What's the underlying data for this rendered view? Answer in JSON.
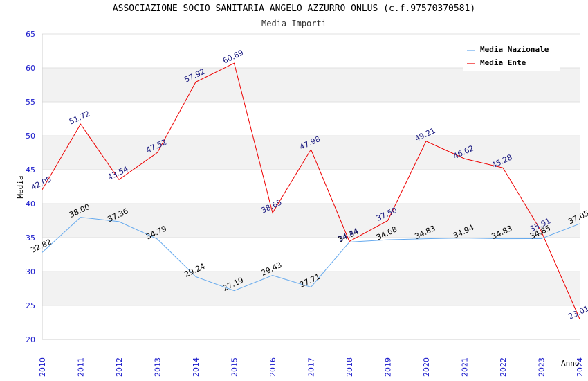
{
  "chart_data": {
    "type": "line",
    "title": "ASSOCIAZIONE SOCIO SANITARIA ANGELO AZZURRO ONLUS (c.f.97570370581)",
    "subtitle": "Media Importi",
    "xlabel": "Anno",
    "ylabel": "Media",
    "ylim": [
      20,
      65
    ],
    "yticks": [
      20,
      25,
      30,
      35,
      40,
      45,
      50,
      55,
      60,
      65
    ],
    "x": [
      "2010",
      "2011",
      "2012",
      "2013",
      "2014",
      "2015",
      "2016",
      "2017",
      "2018",
      "2019",
      "2020",
      "2021",
      "2022",
      "2023",
      "2024"
    ],
    "series": [
      {
        "name": "Media Nazionale",
        "color": "#66aaee",
        "values": [
          32.82,
          38.0,
          37.36,
          34.79,
          29.24,
          27.19,
          29.43,
          27.71,
          34.34,
          34.68,
          34.83,
          34.94,
          34.83,
          34.85,
          37.05
        ],
        "labels": [
          "32.82",
          "38.00",
          "37.36",
          "34.79",
          "29.24",
          "27.19",
          "29.43",
          "27.71",
          "34.34",
          "34.68",
          "34.83",
          "34.94",
          "34.83",
          "34.85",
          "37.05"
        ]
      },
      {
        "name": "Media Ente",
        "color": "#ee0000",
        "values": [
          42.05,
          51.72,
          43.54,
          47.52,
          57.92,
          60.69,
          38.65,
          47.98,
          34.44,
          37.5,
          49.21,
          46.62,
          45.28,
          35.91,
          23.01
        ],
        "labels": [
          "42.05",
          "51.72",
          "43.54",
          "47.52",
          "57.92",
          "60.69",
          "38.65",
          "47.98",
          "34.44",
          "37.50",
          "49.21",
          "46.62",
          "45.28",
          "35.91",
          "23.01"
        ]
      }
    ],
    "grid": true,
    "legend_position": "top-right"
  }
}
